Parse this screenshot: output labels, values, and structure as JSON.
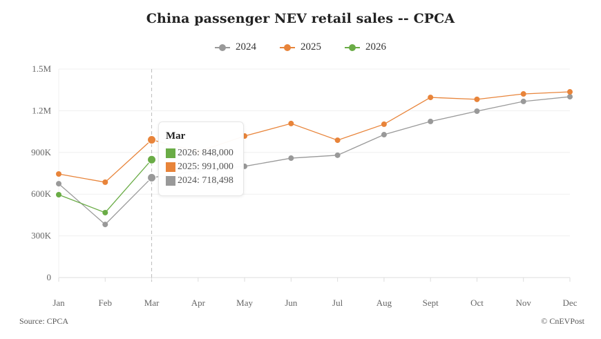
{
  "chart_data": {
    "type": "line",
    "title": "China passenger NEV retail sales -- CPCA",
    "xlabel": "",
    "ylabel": "",
    "categories": [
      "Jan",
      "Feb",
      "Mar",
      "Apr",
      "May",
      "Jun",
      "Jul",
      "Aug",
      "Sept",
      "Oct",
      "Nov",
      "Dec"
    ],
    "ylim": [
      0,
      1500000
    ],
    "yticks": [
      0,
      300000,
      600000,
      900000,
      1200000,
      1500000
    ],
    "ytick_labels": [
      "0",
      "300K",
      "600K",
      "900K",
      "1.2M",
      "1.5M"
    ],
    "grid": true,
    "legend_position": "top",
    "series": [
      {
        "name": "2024",
        "color": "#999999",
        "values": [
          675000,
          382000,
          718498,
          770000,
          800000,
          859000,
          880000,
          1028000,
          1123000,
          1197000,
          1267000,
          1301000
        ]
      },
      {
        "name": "2025",
        "color": "#e8843a",
        "values": [
          745000,
          686000,
          991000,
          905000,
          1018000,
          1108000,
          988000,
          1103000,
          1296000,
          1282000,
          1321000,
          1336000
        ]
      },
      {
        "name": "2026",
        "color": "#6aac46",
        "values": [
          596000,
          467000,
          848000,
          null,
          null,
          null,
          null,
          null,
          null,
          null,
          null,
          null
        ]
      }
    ],
    "annotations": {
      "hover_category": "Mar",
      "tooltip": [
        {
          "label": "2026: 848,000",
          "color": "#6aac46"
        },
        {
          "label": "2025: 991,000",
          "color": "#e8843a"
        },
        {
          "label": "2024: 718,498",
          "color": "#999999"
        }
      ]
    }
  },
  "header": {
    "title": "China passenger NEV retail sales -- CPCA"
  },
  "legend": {
    "items": [
      {
        "label": "2024",
        "color": "#999999"
      },
      {
        "label": "2025",
        "color": "#e8843a"
      },
      {
        "label": "2026",
        "color": "#6aac46"
      }
    ]
  },
  "tooltip": {
    "title": "Mar",
    "rows": [
      {
        "label": "2026: 848,000",
        "color": "#6aac46"
      },
      {
        "label": "2025: 991,000",
        "color": "#e8843a"
      },
      {
        "label": "2024: 718,498",
        "color": "#999999"
      }
    ]
  },
  "footer": {
    "source": "Source: CPCA",
    "credit": "© CnEVPost"
  }
}
